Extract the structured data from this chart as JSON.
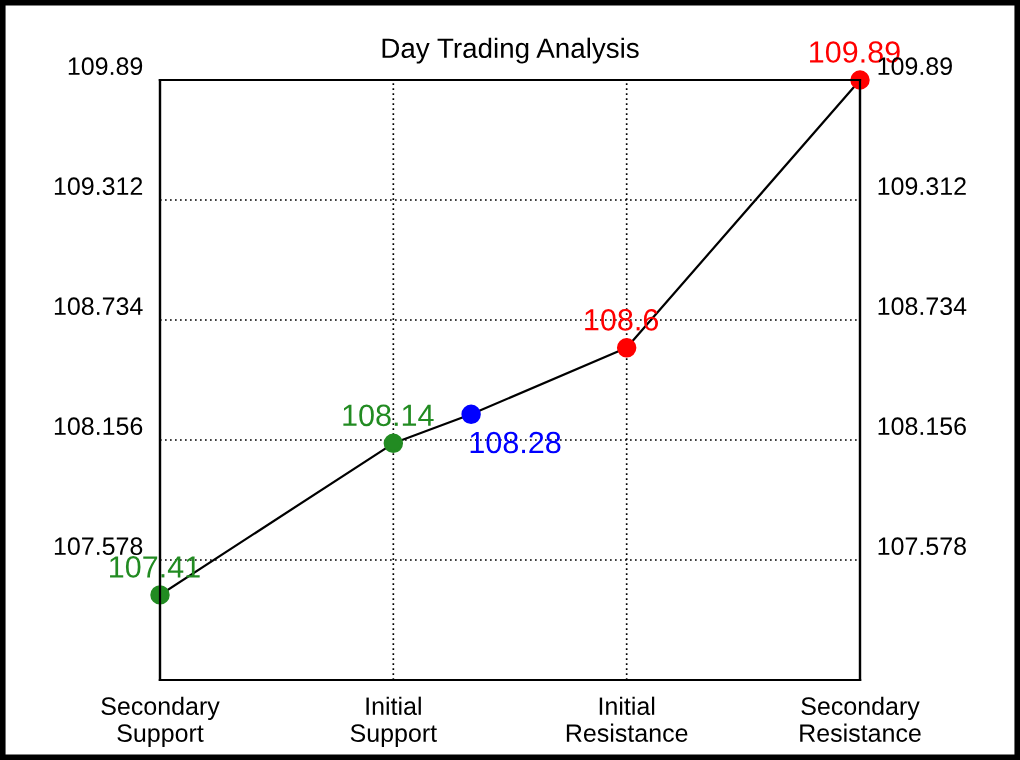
{
  "chart_data": {
    "type": "line",
    "title": "Day Trading Analysis",
    "categories": [
      "Secondary\nSupport",
      null,
      null,
      "Initial\nSupport",
      null,
      null,
      "Initial\nResistance",
      null,
      null,
      "Secondary\nResistance"
    ],
    "series": [
      {
        "values": [
          107.41,
          null,
          null,
          108.14,
          108.28,
          null,
          108.6,
          null,
          null,
          109.89
        ],
        "color": "#000000",
        "colors": [
          "#228b22",
          null,
          null,
          "#228b22",
          "#0000ff",
          null,
          "#ff0000",
          null,
          null,
          "#ff0000"
        ]
      }
    ],
    "ylim": [
      107.0,
      109.89
    ],
    "yticks": [
      107.578,
      108.156,
      108.734,
      109.312,
      109.89
    ],
    "y2lim": [
      107.0,
      109.89
    ],
    "y2ticks": [
      107.578,
      108.156,
      108.734,
      109.312,
      109.89
    ],
    "grid": true,
    "marker": "circle",
    "line_style": "solid",
    "data_labels": true
  }
}
